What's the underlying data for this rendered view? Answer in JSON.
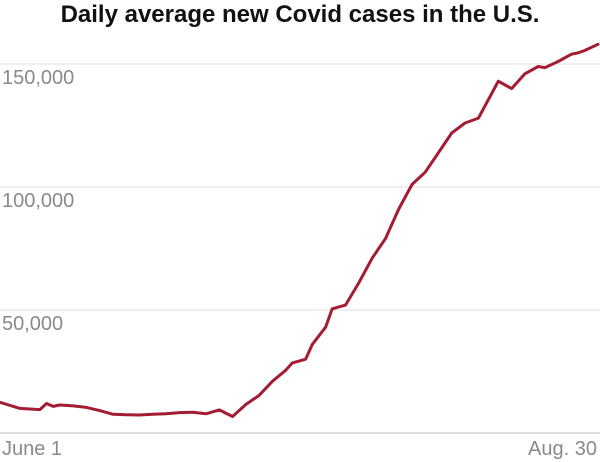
{
  "chart_data": {
    "type": "line",
    "title": "Daily average new Covid cases in the U.S.",
    "xlabel": "",
    "ylabel": "",
    "x_tick_labels": [
      "June 1",
      "Aug. 30"
    ],
    "y_ticks": [
      50000,
      100000,
      150000
    ],
    "y_tick_labels": [
      "50,000",
      "100,000",
      "150,000"
    ],
    "ylim": [
      0,
      160000
    ],
    "grid": true,
    "line_color": "#a31c33",
    "series": [
      {
        "x": [
          "Jun 1",
          "Jun 4",
          "Jun 7",
          "Jun 8",
          "Jun 9",
          "Jun 10",
          "Jun 12",
          "Jun 14",
          "Jun 16",
          "Jun 18",
          "Jun 20",
          "Jun 22",
          "Jun 24",
          "Jun 26",
          "Jun 28",
          "Jun 30",
          "Jul 2",
          "Jul 4",
          "Jul 6",
          "Jul 8",
          "Jul 10",
          "Jul 12",
          "Jul 14",
          "Jul 15",
          "Jul 17",
          "Jul 18",
          "Jul 20",
          "Jul 21",
          "Jul 23",
          "Jul 25",
          "Jul 27",
          "Jul 29",
          "Jul 31",
          "Aug 2",
          "Aug 4",
          "Aug 6",
          "Aug 8",
          "Aug 10",
          "Aug 12",
          "Aug 14",
          "Aug 15",
          "Aug 17",
          "Aug 19",
          "Aug 21",
          "Aug 22",
          "Aug 24",
          "Aug 26",
          "Aug 27",
          "Aug 28",
          "Aug 30"
        ],
        "values": [
          12500,
          10000,
          9500,
          12000,
          10800,
          11400,
          11000,
          10400,
          9100,
          7600,
          7400,
          7300,
          7600,
          7800,
          8300,
          8400,
          7800,
          9400,
          6700,
          11600,
          15300,
          21000,
          25500,
          28500,
          30000,
          36000,
          43000,
          50500,
          52000,
          61000,
          71000,
          79000,
          91000,
          101000,
          106000,
          114000,
          122000,
          126000,
          128000,
          138000,
          143000,
          140000,
          146000,
          149000,
          148500,
          151000,
          154000,
          154500,
          155500,
          158000
        ]
      }
    ]
  }
}
